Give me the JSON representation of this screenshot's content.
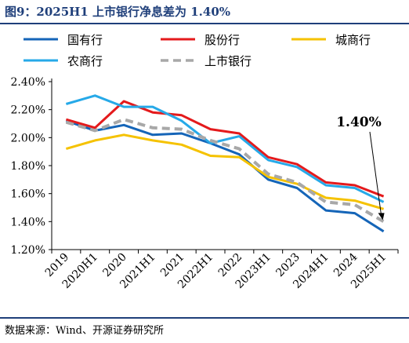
{
  "title": "图9：2025H1 上市银行净息差为 1.40%",
  "source": "数据来源：Wind、开源证券研究所",
  "chart_data": {
    "type": "line",
    "categories": [
      "2019",
      "2020H1",
      "2020",
      "2021H1",
      "2021",
      "2022H1",
      "2022",
      "2023H1",
      "2023",
      "2024H1",
      "2024",
      "2025H1"
    ],
    "ylim": [
      1.2,
      2.4
    ],
    "yticks": [
      1.2,
      1.4,
      1.6,
      1.8,
      2.0,
      2.2,
      2.4
    ],
    "ytick_labels": [
      "1.20%",
      "1.40%",
      "1.60%",
      "1.80%",
      "2.00%",
      "2.20%",
      "2.40%"
    ],
    "legend_position": "top",
    "annotation": {
      "text": "1.40%",
      "series": "上市银行",
      "category": "2025H1"
    },
    "series": [
      {
        "name": "国有行",
        "color": "#1565b8",
        "dashed": false,
        "values": [
          2.12,
          2.05,
          2.09,
          2.02,
          2.03,
          1.96,
          1.88,
          1.7,
          1.64,
          1.48,
          1.46,
          1.33
        ]
      },
      {
        "name": "股份行",
        "color": "#e41a1c",
        "dashed": false,
        "values": [
          2.13,
          2.07,
          2.26,
          2.18,
          2.16,
          2.06,
          2.03,
          1.86,
          1.81,
          1.68,
          1.66,
          1.58
        ]
      },
      {
        "name": "城商行",
        "color": "#f5c200",
        "dashed": false,
        "values": [
          1.92,
          1.98,
          2.02,
          1.98,
          1.95,
          1.87,
          1.86,
          1.72,
          1.67,
          1.57,
          1.55,
          1.49
        ]
      },
      {
        "name": "农商行",
        "color": "#26a9e8",
        "dashed": false,
        "values": [
          2.24,
          2.3,
          2.22,
          2.22,
          2.12,
          1.96,
          2.01,
          1.84,
          1.79,
          1.66,
          1.64,
          1.54
        ]
      },
      {
        "name": "上市银行",
        "color": "#a8a8a8",
        "dashed": true,
        "values": [
          2.11,
          2.05,
          2.13,
          2.07,
          2.06,
          1.98,
          1.92,
          1.74,
          1.68,
          1.54,
          1.52,
          1.4
        ]
      }
    ]
  }
}
